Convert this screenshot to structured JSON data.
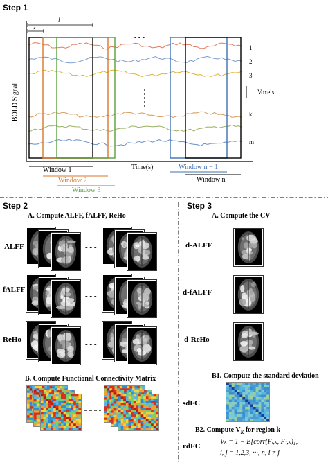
{
  "step1": {
    "title": "Step 1",
    "ylabel": "BOLD Signal",
    "xlabel": "Time(s)",
    "label_s": "s",
    "label_l": "l",
    "ellipsis_h": "- - -",
    "voxel_labels": [
      "1",
      "2",
      "3",
      "k",
      "m"
    ],
    "voxels_label": "Voxels",
    "windows": [
      {
        "label": "Window 1",
        "color": "#000000"
      },
      {
        "label": "Window 2",
        "color": "#d9772a"
      },
      {
        "label": "Window 3",
        "color": "#5a9e3a"
      },
      {
        "label": "Window n − 1",
        "color": "#3f6fb0"
      },
      {
        "label": "Window n",
        "color": "#000000"
      }
    ]
  },
  "step2": {
    "title": "Step 2",
    "a_title": "A. Compute ALFF, fALFF, ReHo",
    "rows": [
      "ALFF",
      "fALFF",
      "ReHo"
    ],
    "dashes": "- - -",
    "b_title": "B. Compute Functional Connectivity Matrix"
  },
  "step3": {
    "title": "Step 3",
    "a_title": "A. Compute the CV",
    "rows": [
      "d-ALFF",
      "d-fALFF",
      "d-ReHo"
    ],
    "b1_title": "B1. Compute the standard deviation",
    "sdfc": "sdFC",
    "b2_title": "B2. Compute V",
    "b2_sub": "K",
    "b2_tail": " for region k",
    "rdfc": "rdFC",
    "eq_line1": "Vₖ = 1 − E[corr(Fᵢ,ₖ, Fⱼ,ₖ)],",
    "eq_line2": "i, j = 1,2,3, ···, n, i ≠ j"
  },
  "colors": {
    "orange": "#d9772a",
    "green": "#5a9e3a",
    "blue": "#3f6fb0",
    "heat_hot": "#d8301c",
    "heat_mid": "#f2d43a",
    "heat_cool": "#4aa0d8"
  }
}
